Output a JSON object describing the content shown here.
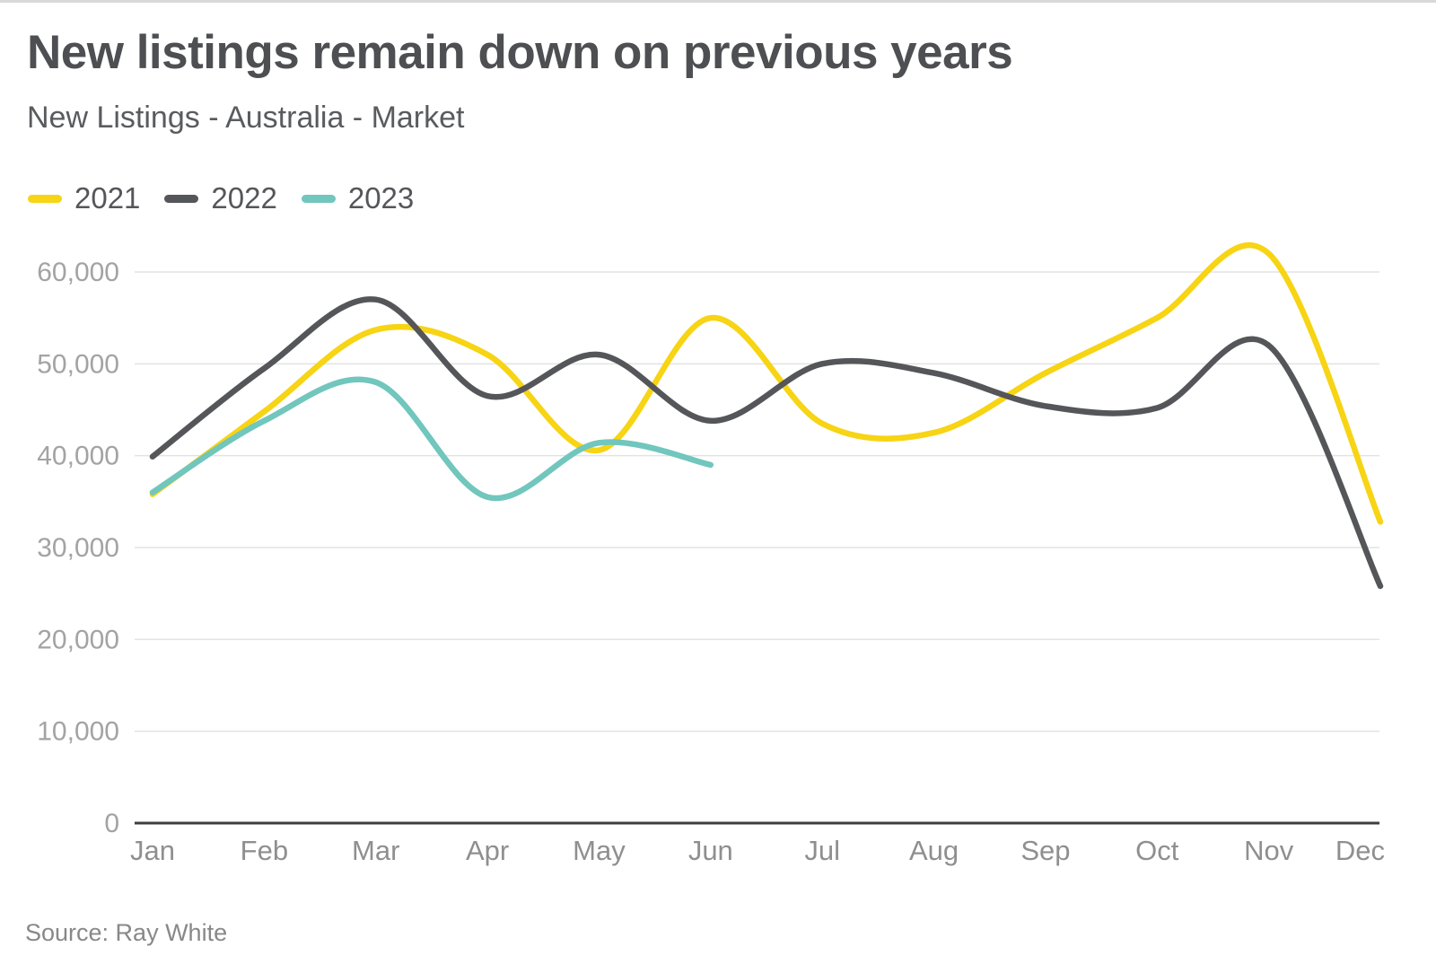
{
  "chart_data": {
    "type": "line",
    "title": "New listings remain down on previous years",
    "subtitle": "New Listings - Australia - Market",
    "source": "Source: Ray White",
    "xlabel": "",
    "ylabel": "",
    "categories": [
      "Jan",
      "Feb",
      "Mar",
      "Apr",
      "May",
      "Jun",
      "Jul",
      "Aug",
      "Sep",
      "Oct",
      "Nov",
      "Dec"
    ],
    "series": [
      {
        "name": "2021",
        "color": "#F7D414",
        "values": [
          35800,
          44800,
          53700,
          51000,
          40600,
          55000,
          43500,
          42500,
          49000,
          55000,
          62000,
          32800
        ]
      },
      {
        "name": "2022",
        "color": "#55565A",
        "values": [
          39900,
          49500,
          57000,
          46500,
          51000,
          43800,
          50000,
          49000,
          45400,
          45200,
          52000,
          25800
        ]
      },
      {
        "name": "2023",
        "color": "#71C6BD",
        "values": [
          36000,
          43800,
          48000,
          35500,
          41400,
          39000,
          null,
          null,
          null,
          null,
          null,
          null
        ]
      }
    ],
    "ylim": [
      0,
      60000
    ],
    "yticks": [
      0,
      10000,
      20000,
      30000,
      40000,
      50000,
      60000
    ],
    "grid": true,
    "legend_position": "top-left",
    "curve": "smooth"
  },
  "colors": {
    "gridline": "#E3E3E3",
    "axis": "#3E3E3E",
    "tick_label": "#A3A3A3",
    "month_label": "#8F8F8F"
  }
}
